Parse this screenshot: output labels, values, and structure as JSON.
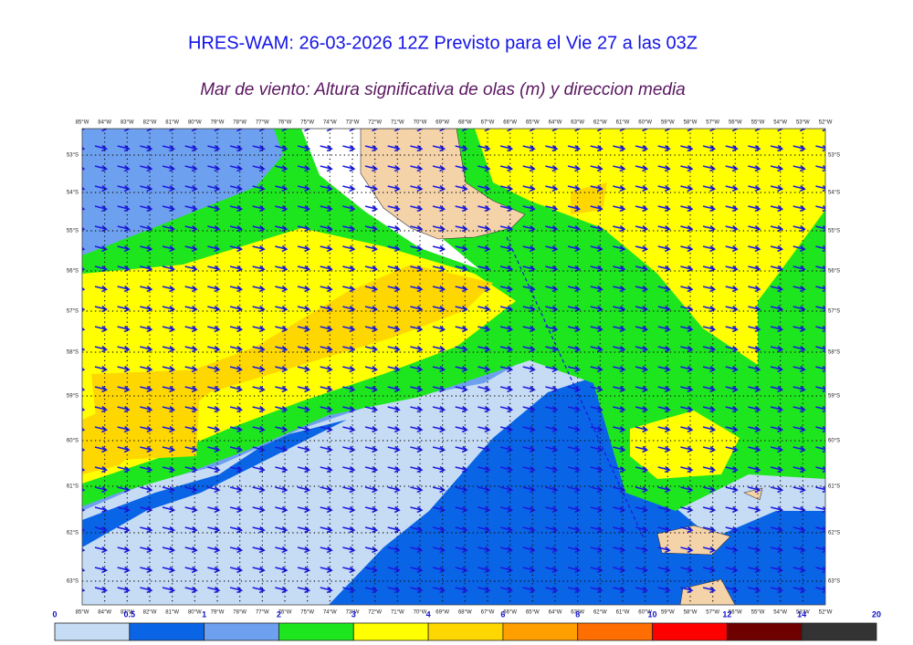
{
  "header": {
    "title": "HRES-WAM: 26-03-2026 12Z Previsto para el Vie 27 a las 03Z",
    "subtitle": "Mar de viento: Altura significativa de olas (m) y direccion media"
  },
  "map": {
    "longitude_labels": [
      "85°W",
      "84°W",
      "83°W",
      "82°W",
      "81°W",
      "80°W",
      "79°W",
      "78°W",
      "77°W",
      "76°W",
      "75°W",
      "74°W",
      "73°W",
      "72°W",
      "71°W",
      "70°W",
      "69°W",
      "68°W",
      "67°W",
      "66°W",
      "65°W",
      "64°W",
      "63°W",
      "62°W",
      "61°W",
      "60°W",
      "59°W",
      "58°W",
      "57°W",
      "56°W",
      "55°W",
      "54°W",
      "53°W",
      "52°W"
    ],
    "latitude_labels": [
      "53°S",
      "54°S",
      "55°S",
      "56°S",
      "57°S",
      "58°S",
      "59°S",
      "60°S",
      "61°S",
      "62°S",
      "63°S"
    ]
  },
  "legend": {
    "levels": [
      0,
      0.5,
      1,
      2,
      3,
      4,
      6,
      8,
      10,
      12,
      14,
      20
    ],
    "colors": [
      "#c6dcf5",
      "#0a64e6",
      "#6ea0f0",
      "#1ee61e",
      "#ffff00",
      "#ffd700",
      "#ff9f00",
      "#ff6e00",
      "#ff0000",
      "#6e0000",
      "#333333"
    ]
  }
}
